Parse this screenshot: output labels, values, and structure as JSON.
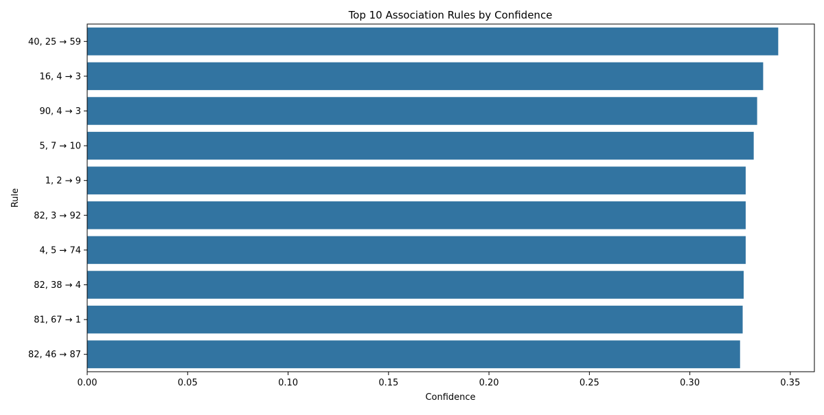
{
  "chart_data": {
    "type": "bar",
    "orientation": "horizontal",
    "title": "Top 10 Association Rules by Confidence",
    "xlabel": "Confidence",
    "ylabel": "Rule",
    "xlim": [
      0,
      0.362
    ],
    "xticks": [
      0.0,
      0.05,
      0.1,
      0.15,
      0.2,
      0.25,
      0.3,
      0.35
    ],
    "xtick_labels": [
      "0.00",
      "0.05",
      "0.10",
      "0.15",
      "0.20",
      "0.25",
      "0.30",
      "0.35"
    ],
    "categories": [
      "40, 25 → 59",
      "16, 4 → 3",
      "90, 4 → 3",
      "5, 7 → 10",
      "1, 2 → 9",
      "82, 3 → 92",
      "4, 5 → 74",
      "82, 38 → 4",
      "81, 67 → 1",
      "82, 46 → 87"
    ],
    "values": [
      0.344,
      0.3365,
      0.3335,
      0.3318,
      0.3278,
      0.3278,
      0.3278,
      0.3268,
      0.3263,
      0.325
    ],
    "bar_color": "#3274a1",
    "grid": false,
    "legend": "none"
  }
}
